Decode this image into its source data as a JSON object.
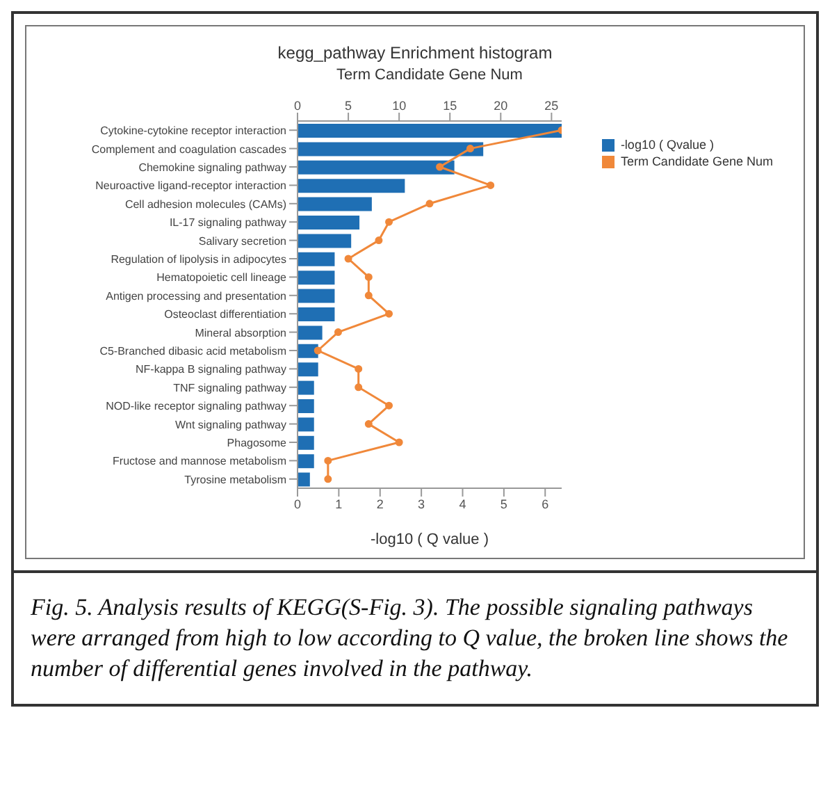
{
  "chart_data": {
    "type": "bar",
    "orientation": "horizontal",
    "title": "kegg_pathway Enrichment histogram",
    "xlabel": "-log10 ( Q value )",
    "x2label": "Term Candidate Gene Num",
    "categories": [
      "Cytokine-cytokine receptor interaction",
      "Complement and coagulation cascades",
      "Chemokine signaling pathway",
      "Neuroactive ligand-receptor interaction",
      "Cell adhesion molecules (CAMs)",
      "IL-17 signaling pathway",
      "Salivary secretion",
      "Regulation of lipolysis in adipocytes",
      "Hematopoietic cell lineage",
      "Antigen processing and presentation",
      "Osteoclast differentiation",
      "Mineral absorption",
      "C5-Branched dibasic acid metabolism",
      "NF-kappa B signaling pathway",
      "TNF signaling pathway",
      "NOD-like receptor signaling pathway",
      "Wnt signaling pathway",
      "Phagosome",
      "Fructose and mannose metabolism",
      "Tyrosine metabolism"
    ],
    "series": [
      {
        "name": "-log10 ( Qvalue )",
        "color": "#1f6fb4",
        "values": [
          6.4,
          4.5,
          3.8,
          2.6,
          1.8,
          1.5,
          1.3,
          0.9,
          0.9,
          0.9,
          0.9,
          0.6,
          0.5,
          0.5,
          0.4,
          0.4,
          0.4,
          0.4,
          0.4,
          0.3
        ]
      },
      {
        "name": "Term Candidate Gene Num",
        "type": "line",
        "axis": "x2",
        "color": "#f0883a",
        "marker": "circle",
        "values": [
          26,
          17,
          14,
          19,
          13,
          9,
          8,
          5,
          7,
          7,
          9,
          4,
          2,
          6,
          6,
          9,
          7,
          10,
          3,
          3
        ]
      }
    ],
    "xlim": [
      0,
      6.4
    ],
    "xticks": [
      0,
      1,
      2,
      3,
      4,
      5,
      6
    ],
    "x2lim": [
      0,
      26
    ],
    "x2ticks": [
      0,
      5,
      10,
      15,
      20,
      25
    ],
    "legend": "top right",
    "annotations": [
      "Fig. 5. Analysis results of  KEGG(S-Fig. 3). The possible signaling pathways were arranged from high to low according to Q value, the broken line shows the number of  differential genes involved in the pathway."
    ]
  }
}
